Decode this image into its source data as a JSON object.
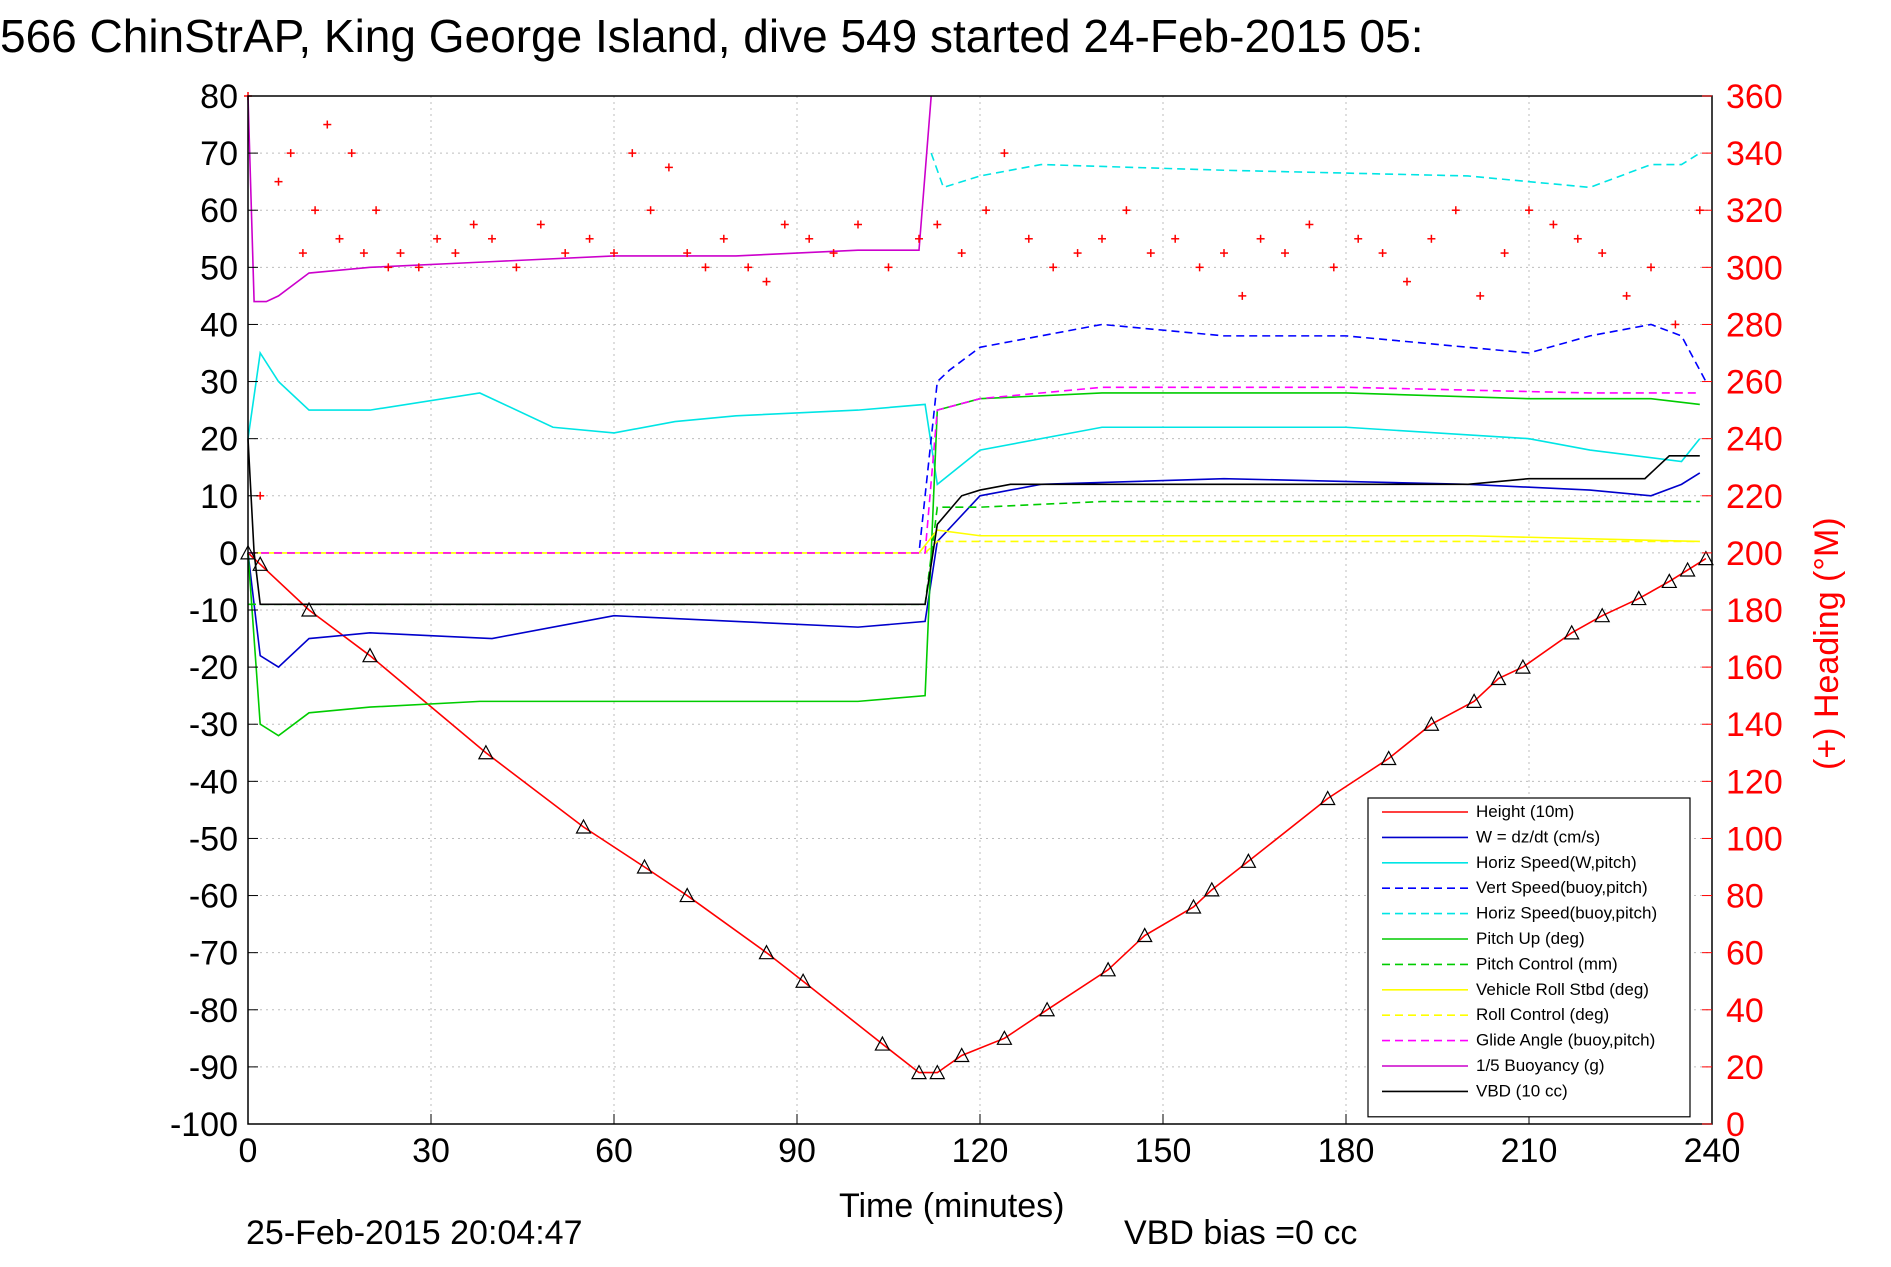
{
  "chart_data": {
    "type": "line",
    "title": "566 ChinStrAP, King George Island, dive 549 started 24-Feb-2015 05:",
    "xlabel": "Time (minutes)",
    "ylabel": "",
    "y2label": "(+) Heading (°M)",
    "xlim": [
      0,
      240
    ],
    "ylim": [
      -100,
      80
    ],
    "y2lim": [
      0,
      360
    ],
    "x_ticks": [
      0,
      30,
      60,
      90,
      120,
      150,
      180,
      210,
      240
    ],
    "y_ticks": [
      80,
      70,
      60,
      50,
      40,
      30,
      20,
      10,
      0,
      -10,
      -20,
      -30,
      -40,
      -50,
      -60,
      -70,
      -80,
      -90,
      -100
    ],
    "y2_ticks": [
      360,
      340,
      320,
      300,
      280,
      260,
      240,
      220,
      200,
      180,
      160,
      140,
      120,
      100,
      80,
      60,
      40,
      20,
      0
    ],
    "grid": true,
    "legend_position": "bottom-right",
    "footer_left": "25-Feb-2015 20:04:47",
    "footer_right": "VBD bias =0 cc",
    "series": [
      {
        "name": "Height (10m)",
        "color": "#ff0000",
        "style": "solid",
        "x": [
          0,
          2,
          10,
          20,
          39,
          55,
          65,
          72,
          85,
          91,
          104,
          110,
          113,
          117,
          124,
          131,
          141,
          147,
          155,
          158,
          164,
          177,
          187,
          194,
          201,
          205,
          209,
          217,
          222,
          228,
          233,
          236,
          239
        ],
        "y": [
          0,
          -2,
          -10,
          -18,
          -35,
          -48,
          -55,
          -60,
          -70,
          -75,
          -86,
          -91,
          -91,
          -88,
          -85,
          -80,
          -73,
          -67,
          -62,
          -59,
          -54,
          -43,
          -36,
          -30,
          -26,
          -22,
          -20,
          -14,
          -11,
          -8,
          -5,
          -3,
          -1
        ]
      },
      {
        "name": "W = dz/dt (cm/s)",
        "color": "#0000cc",
        "style": "solid",
        "x": [
          0,
          2,
          5,
          10,
          20,
          40,
          60,
          80,
          100,
          111,
          113,
          120,
          130,
          160,
          200,
          220,
          230,
          235,
          238
        ],
        "y": [
          0,
          -18,
          -20,
          -15,
          -14,
          -15,
          -11,
          -12,
          -13,
          -12,
          2,
          10,
          12,
          13,
          12,
          11,
          10,
          12,
          14
        ]
      },
      {
        "name": "Horiz Speed(W,pitch)",
        "color": "#00e5e5",
        "style": "solid",
        "x": [
          0,
          2,
          5,
          10,
          20,
          38,
          50,
          60,
          70,
          80,
          100,
          111,
          113,
          120,
          140,
          180,
          210,
          220,
          235,
          238
        ],
        "y": [
          20,
          35,
          30,
          25,
          25,
          28,
          22,
          21,
          23,
          24,
          25,
          26,
          12,
          18,
          22,
          22,
          20,
          18,
          16,
          20
        ]
      },
      {
        "name": "Vert Speed(buoy,pitch)",
        "color": "#0000ff",
        "style": "dashed",
        "x": [
          0,
          110,
          113,
          115,
          120,
          140,
          160,
          180,
          200,
          210,
          220,
          230,
          235,
          239
        ],
        "y": [
          0,
          0,
          30,
          32,
          36,
          40,
          38,
          38,
          36,
          35,
          38,
          40,
          38,
          30
        ]
      },
      {
        "name": "Horiz Speed(buoy,pitch)",
        "color": "#00e5e5",
        "style": "dashed",
        "x": [
          112,
          114,
          120,
          130,
          160,
          200,
          220,
          230,
          235,
          238
        ],
        "y": [
          70,
          64,
          66,
          68,
          67,
          66,
          64,
          68,
          68,
          70
        ]
      },
      {
        "name": "Pitch Up (deg)",
        "color": "#00cc00",
        "style": "solid",
        "x": [
          0,
          2,
          5,
          10,
          20,
          38,
          60,
          80,
          100,
          111,
          113,
          120,
          140,
          180,
          210,
          230,
          238
        ],
        "y": [
          0,
          -30,
          -32,
          -28,
          -27,
          -26,
          -26,
          -26,
          -26,
          -25,
          25,
          27,
          28,
          28,
          27,
          27,
          26
        ]
      },
      {
        "name": "Pitch Control (mm)",
        "color": "#00cc00",
        "style": "dashed",
        "x": [
          0,
          111,
          113,
          120,
          140,
          200,
          238
        ],
        "y": [
          -9,
          -9,
          8,
          8,
          9,
          9,
          9
        ]
      },
      {
        "name": "Vehicle Roll Stbd (deg)",
        "color": "#ffff00",
        "style": "solid",
        "x": [
          0,
          110,
          113,
          120,
          200,
          238
        ],
        "y": [
          0,
          0,
          4,
          3,
          3,
          2
        ]
      },
      {
        "name": "Roll Control (deg)",
        "color": "#ffff00",
        "style": "dashed",
        "x": [
          0,
          111,
          113,
          238
        ],
        "y": [
          0,
          0,
          2,
          2
        ]
      },
      {
        "name": "Glide Angle (buoy,pitch)",
        "color": "#ff00ff",
        "style": "dashed",
        "x": [
          0,
          111,
          113,
          120,
          140,
          180,
          220,
          238
        ],
        "y": [
          0,
          0,
          25,
          27,
          29,
          29,
          28,
          28
        ]
      },
      {
        "name": "1/5 Buoyancy (g)",
        "color": "#cc00cc",
        "style": "solid",
        "x": [
          0,
          1,
          3,
          5,
          10,
          20,
          40,
          60,
          80,
          100,
          110,
          112
        ],
        "y": [
          80,
          44,
          44,
          45,
          49,
          50,
          51,
          52,
          52,
          53,
          53,
          80
        ]
      },
      {
        "name": "VBD (10 cc)",
        "color": "#000000",
        "style": "solid",
        "x": [
          0,
          1,
          2,
          111,
          113,
          117,
          120,
          125,
          140,
          180,
          200,
          210,
          229,
          233,
          238
        ],
        "y": [
          20,
          0,
          -9,
          -9,
          5,
          10,
          11,
          12,
          12,
          12,
          12,
          13,
          13,
          17,
          17
        ]
      },
      {
        "name": "(+) Heading",
        "color": "#ff0000",
        "style": "markers",
        "axis": "right",
        "x": [
          0,
          2,
          5,
          7,
          9,
          11,
          13,
          15,
          17,
          19,
          21,
          23,
          25,
          28,
          31,
          34,
          37,
          40,
          44,
          48,
          52,
          56,
          60,
          63,
          66,
          69,
          72,
          75,
          78,
          82,
          85,
          88,
          92,
          96,
          100,
          105,
          110,
          113,
          117,
          121,
          124,
          128,
          132,
          136,
          140,
          144,
          148,
          152,
          156,
          160,
          163,
          166,
          170,
          174,
          178,
          182,
          186,
          190,
          194,
          198,
          202,
          206,
          210,
          214,
          218,
          222,
          226,
          230,
          234,
          238
        ],
        "y": [
          360,
          220,
          330,
          340,
          305,
          320,
          350,
          310,
          340,
          305,
          320,
          300,
          305,
          300,
          310,
          305,
          315,
          310,
          300,
          315,
          305,
          310,
          305,
          340,
          320,
          335,
          305,
          300,
          310,
          300,
          295,
          315,
          310,
          305,
          315,
          300,
          310,
          315,
          305,
          320,
          340,
          310,
          300,
          305,
          310,
          320,
          305,
          310,
          300,
          305,
          290,
          310,
          305,
          315,
          300,
          310,
          305,
          295,
          310,
          320,
          290,
          305,
          320,
          315,
          310,
          305,
          290,
          300,
          280,
          320
        ]
      }
    ]
  }
}
